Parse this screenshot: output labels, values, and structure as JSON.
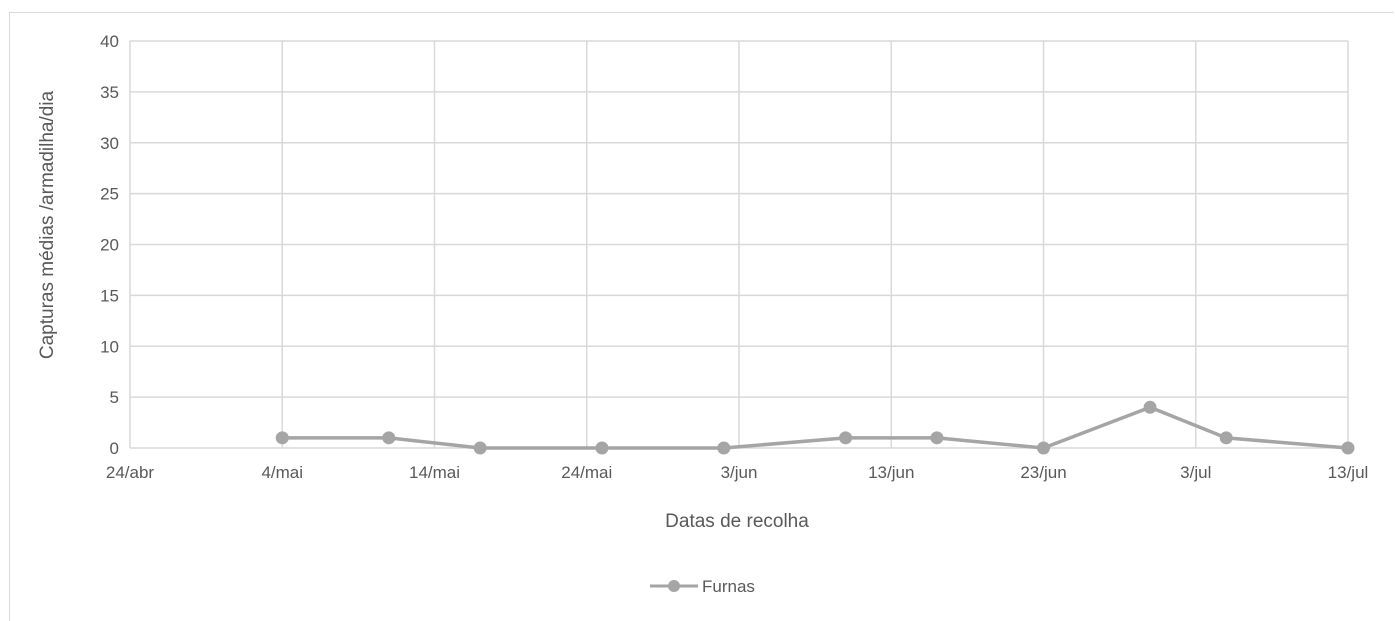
{
  "chart_data": {
    "type": "line",
    "title": "",
    "xlabel": "Datas de recolha",
    "ylabel": "Capturas médias /armadilha/dia",
    "ylim": [
      0,
      40
    ],
    "yticks": [
      0,
      5,
      10,
      15,
      20,
      25,
      30,
      35,
      40
    ],
    "xlim": [
      "24/abr",
      "13/jul"
    ],
    "xtick_labels": [
      "24/abr",
      "4/mai",
      "14/mai",
      "24/mai",
      "3/jun",
      "13/jun",
      "23/jun",
      "3/jul",
      "13/jul"
    ],
    "grid": true,
    "legend_position": "bottom",
    "series": [
      {
        "name": "Furnas",
        "color": "#a5a5a5",
        "x": [
          "4/mai",
          "11/mai",
          "17/mai",
          "25/mai",
          "2/jun",
          "10/jun",
          "16/jun",
          "23/jun",
          "30/jun",
          "5/jul",
          "13/jul"
        ],
        "y": [
          1,
          1,
          0,
          0,
          0,
          1,
          1,
          0,
          4,
          1,
          0
        ]
      }
    ]
  }
}
